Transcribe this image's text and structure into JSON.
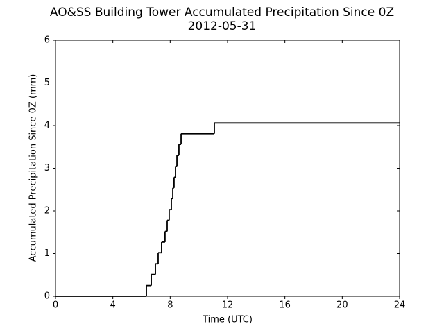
{
  "chart_data": {
    "type": "line",
    "drawstyle": "steps-post",
    "title": "AO&SS Building Tower Accumulated Precipitation Since 0Z",
    "subtitle": "2012-05-31",
    "xlabel": "Time (UTC)",
    "ylabel": "Accumulated Precipitation Since 0Z (mm)",
    "x": [
      0,
      6.34,
      6.68,
      6.97,
      7.16,
      7.4,
      7.64,
      7.79,
      7.93,
      8.08,
      8.18,
      8.27,
      8.37,
      8.47,
      8.61,
      8.76,
      11.08
    ],
    "values": [
      0,
      0.25,
      0.51,
      0.76,
      1.02,
      1.27,
      1.52,
      1.78,
      2.03,
      2.29,
      2.54,
      2.79,
      3.05,
      3.3,
      3.56,
      3.81,
      4.06
    ],
    "color": "#000000",
    "xlim": [
      0,
      24
    ],
    "xticks": [
      0,
      4,
      8,
      12,
      16,
      20,
      24
    ],
    "ylim": [
      0,
      6
    ],
    "yticks": [
      0,
      1,
      2,
      3,
      4,
      5,
      6
    ],
    "grid": false
  }
}
